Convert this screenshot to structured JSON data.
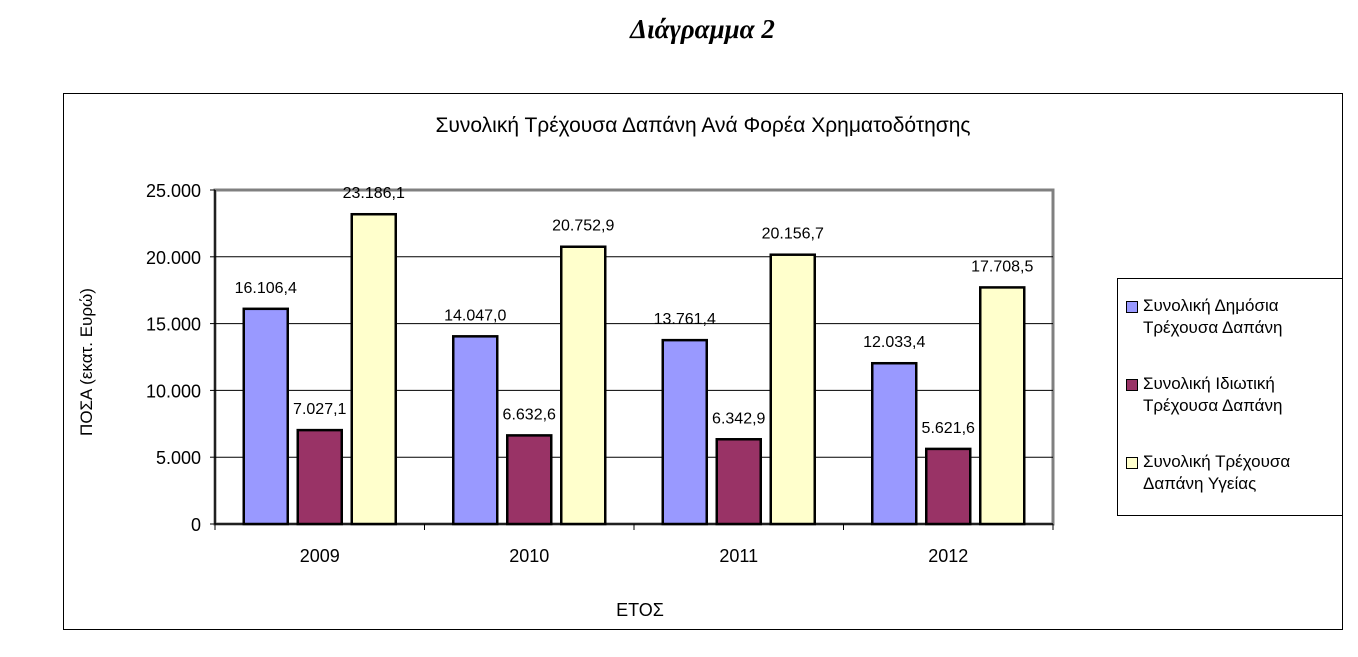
{
  "heading": "Διάγραμμα 2",
  "chart_data": {
    "type": "bar",
    "title": "Συνολική Τρέχουσα Δαπάνη Ανά Φορέα Χρηματοδότησης",
    "xlabel": "ΕΤΟΣ",
    "ylabel": "ΠΟΣΑ (εκατ. Ευρώ)",
    "categories": [
      "2009",
      "2010",
      "2011",
      "2012"
    ],
    "ylim": [
      0,
      25000
    ],
    "yticks": [
      0,
      5000,
      10000,
      15000,
      20000,
      25000
    ],
    "ytick_labels": [
      "0",
      "5.000",
      "10.000",
      "15.000",
      "20.000",
      "25.000"
    ],
    "grid": true,
    "legend_position": "right",
    "series": [
      {
        "name": "Συνολική Δημόσια Τρέχουσα Δαπάνη",
        "legend_lines": [
          "Συνολική Δημόσια",
          "Τρέχουσα Δαπάνη"
        ],
        "color": "#9999ff",
        "values": [
          16106.4,
          14047.0,
          13761.4,
          12033.4
        ],
        "labels": [
          "16.106,4",
          "14.047,0",
          "13.761,4",
          "12.033,4"
        ]
      },
      {
        "name": "Συνολική Ιδιωτική Τρέχουσα Δαπάνη",
        "legend_lines": [
          "Συνολική Ιδιωτική",
          "Τρέχουσα Δαπάνη"
        ],
        "color": "#993366",
        "values": [
          7027.1,
          6632.6,
          6342.9,
          5621.6
        ],
        "labels": [
          "7.027,1",
          "6.632,6",
          "6.342,9",
          "5.621,6"
        ]
      },
      {
        "name": "Συνολική Τρέχουσα Δαπάνη Υγείας",
        "legend_lines": [
          "Συνολική Τρέχουσα",
          "Δαπάνη Υγείας"
        ],
        "color": "#ffffcc",
        "values": [
          23186.1,
          20752.9,
          20156.7,
          17708.5
        ],
        "labels": [
          "23.186,1",
          "20.752,9",
          "20.156,7",
          "17.708,5"
        ]
      }
    ]
  }
}
